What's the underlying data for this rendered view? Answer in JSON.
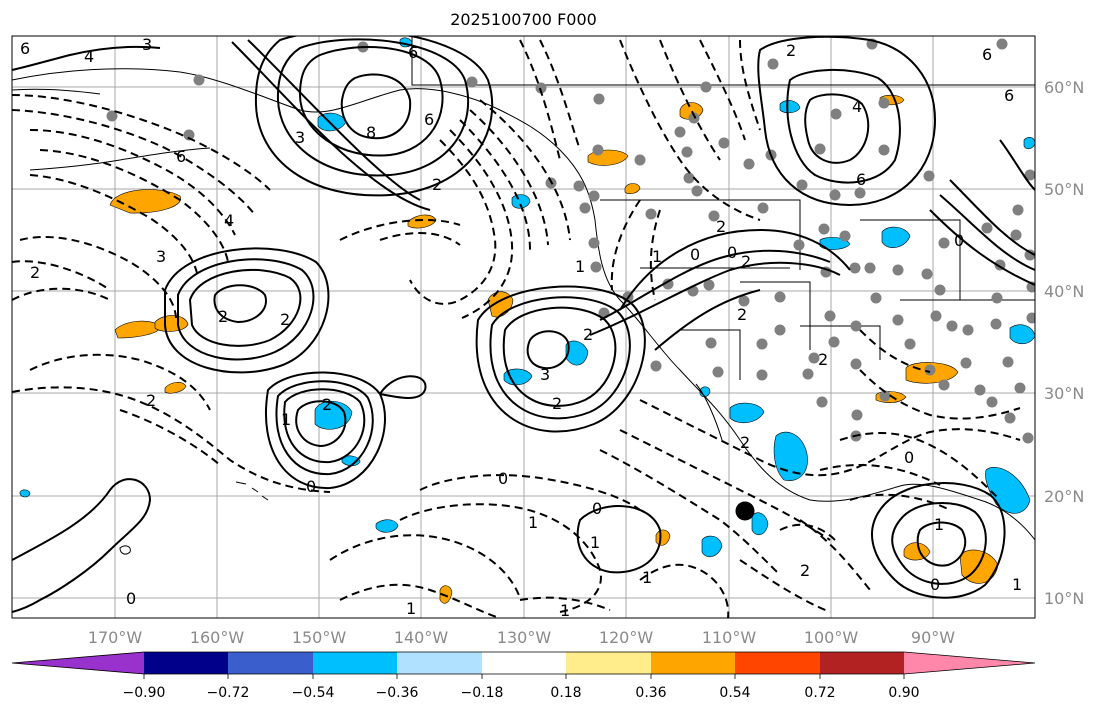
{
  "title": "2025100700 F000",
  "map": {
    "lon_labels": [
      "170°W",
      "160°W",
      "150°W",
      "140°W",
      "130°W",
      "120°W",
      "110°W",
      "100°W",
      "90°W"
    ],
    "lat_labels": [
      "60°N",
      "50°N",
      "40°N",
      "30°N",
      "20°N",
      "10°N"
    ],
    "contour_labels": [
      "6",
      "4",
      "3",
      "6",
      "8",
      "6",
      "3",
      "2",
      "6",
      "4",
      "3",
      "2",
      "4",
      "6",
      "6",
      "6",
      "2",
      "1",
      "0",
      "2",
      "0",
      "1",
      "2",
      "2",
      "2",
      "2",
      "3",
      "2",
      "2",
      "1",
      "2",
      "2",
      "0",
      "0",
      "0",
      "1",
      "1",
      "0",
      "1",
      "2",
      "0",
      "1",
      "1",
      "0",
      "0",
      "2",
      "1",
      "1",
      "2"
    ],
    "marker_color": "#000000",
    "station_color": "#808080"
  },
  "colorbar": {
    "ticks": [
      "−0.90",
      "−0.72",
      "−0.54",
      "−0.36",
      "−0.18",
      "0.18",
      "0.36",
      "0.54",
      "0.72",
      "0.90"
    ],
    "colors": [
      "#9932CC",
      "#00008B",
      "#3A5FCD",
      "#00BFFF",
      "#B0E2FF",
      "#FFFFFF",
      "#FFEC8B",
      "#FFA500",
      "#FF4500",
      "#B22222",
      "#FF88AA"
    ]
  }
}
